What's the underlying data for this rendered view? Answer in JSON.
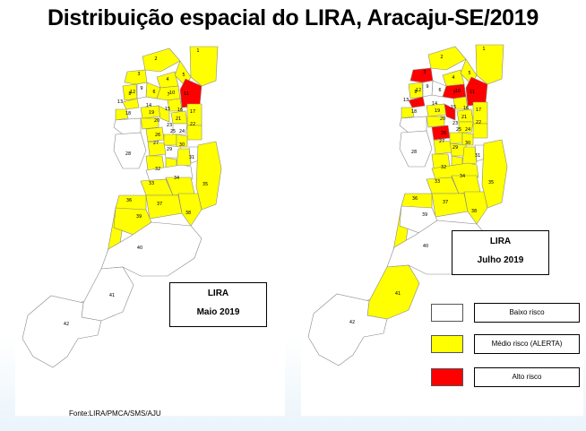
{
  "title": "Distribuição espacial do LIRA, Aracaju-SE/2019",
  "colors": {
    "low": "#ffffff",
    "medium": "#ffff00",
    "high": "#ff0000"
  },
  "maps": [
    {
      "box_line1": "LIRA",
      "box_line2": "Maio 2019",
      "zones": [
        {
          "id": "1",
          "risk": "medium"
        },
        {
          "id": "2",
          "risk": "medium"
        },
        {
          "id": "3",
          "risk": "medium"
        },
        {
          "id": "4",
          "risk": "medium"
        },
        {
          "id": "5",
          "risk": "medium"
        },
        {
          "id": "6",
          "risk": "medium"
        },
        {
          "id": "7",
          "risk": "medium"
        },
        {
          "id": "8",
          "risk": "medium"
        },
        {
          "id": "9",
          "risk": "low"
        },
        {
          "id": "10",
          "risk": "medium"
        },
        {
          "id": "11",
          "risk": "high"
        },
        {
          "id": "12",
          "risk": "medium"
        },
        {
          "id": "13",
          "risk": "medium"
        },
        {
          "id": "14",
          "risk": "medium"
        },
        {
          "id": "15",
          "risk": "medium"
        },
        {
          "id": "16",
          "risk": "medium"
        },
        {
          "id": "17",
          "risk": "medium"
        },
        {
          "id": "18",
          "risk": "low"
        },
        {
          "id": "19",
          "risk": "medium"
        },
        {
          "id": "20",
          "risk": "medium"
        },
        {
          "id": "21",
          "risk": "low"
        },
        {
          "id": "22",
          "risk": "medium"
        },
        {
          "id": "23",
          "risk": "medium"
        },
        {
          "id": "24",
          "risk": "medium"
        },
        {
          "id": "25",
          "risk": "low"
        },
        {
          "id": "26",
          "risk": "medium"
        },
        {
          "id": "27",
          "risk": "medium"
        },
        {
          "id": "28",
          "risk": "low"
        },
        {
          "id": "29",
          "risk": "medium"
        },
        {
          "id": "30",
          "risk": "medium"
        },
        {
          "id": "31",
          "risk": "low"
        },
        {
          "id": "32",
          "risk": "low"
        },
        {
          "id": "33",
          "risk": "medium"
        },
        {
          "id": "34",
          "risk": "medium"
        },
        {
          "id": "35",
          "risk": "medium"
        },
        {
          "id": "36",
          "risk": "medium"
        },
        {
          "id": "37",
          "risk": "medium"
        },
        {
          "id": "38",
          "risk": "medium"
        },
        {
          "id": "39",
          "risk": "medium"
        },
        {
          "id": "40",
          "risk": "low"
        },
        {
          "id": "41",
          "risk": "low"
        },
        {
          "id": "42",
          "risk": "low"
        }
      ]
    },
    {
      "box_line1": "LIRA",
      "box_line2": "Julho 2019",
      "zones": [
        {
          "id": "1",
          "risk": "medium"
        },
        {
          "id": "2",
          "risk": "medium"
        },
        {
          "id": "3",
          "risk": "high"
        },
        {
          "id": "4",
          "risk": "medium"
        },
        {
          "id": "5",
          "risk": "medium"
        },
        {
          "id": "6",
          "risk": "low"
        },
        {
          "id": "7",
          "risk": "high"
        },
        {
          "id": "8",
          "risk": "medium"
        },
        {
          "id": "9",
          "risk": "low"
        },
        {
          "id": "10",
          "risk": "medium"
        },
        {
          "id": "11",
          "risk": "high"
        },
        {
          "id": "12",
          "risk": "high"
        },
        {
          "id": "13",
          "risk": "medium"
        },
        {
          "id": "14",
          "risk": "medium"
        },
        {
          "id": "15",
          "risk": "high"
        },
        {
          "id": "16",
          "risk": "medium"
        },
        {
          "id": "17",
          "risk": "medium"
        },
        {
          "id": "18",
          "risk": "low"
        },
        {
          "id": "19",
          "risk": "medium"
        },
        {
          "id": "20",
          "risk": "high"
        },
        {
          "id": "21",
          "risk": "medium"
        },
        {
          "id": "22",
          "risk": "medium"
        },
        {
          "id": "23",
          "risk": "medium"
        },
        {
          "id": "24",
          "risk": "medium"
        },
        {
          "id": "25",
          "risk": "medium"
        },
        {
          "id": "26",
          "risk": "medium"
        },
        {
          "id": "27",
          "risk": "medium"
        },
        {
          "id": "28",
          "risk": "low"
        },
        {
          "id": "29",
          "risk": "medium"
        },
        {
          "id": "30",
          "risk": "medium"
        },
        {
          "id": "31",
          "risk": "low"
        },
        {
          "id": "32",
          "risk": "medium"
        },
        {
          "id": "33",
          "risk": "medium"
        },
        {
          "id": "34",
          "risk": "medium"
        },
        {
          "id": "35",
          "risk": "medium"
        },
        {
          "id": "36",
          "risk": "medium"
        },
        {
          "id": "37",
          "risk": "medium"
        },
        {
          "id": "38",
          "risk": "medium"
        },
        {
          "id": "39",
          "risk": "low"
        },
        {
          "id": "40",
          "risk": "low"
        },
        {
          "id": "41",
          "risk": "medium"
        },
        {
          "id": "42",
          "risk": "low"
        }
      ]
    }
  ],
  "legend": [
    {
      "label": "Baixo risco",
      "color": "#ffffff"
    },
    {
      "label": "Médio risco (ALERTA)",
      "color": "#ffff00"
    },
    {
      "label": "Alto  risco",
      "color": "#ff0000"
    }
  ],
  "source": "Fonte:LIRA/PMCA/SMS/AJU"
}
